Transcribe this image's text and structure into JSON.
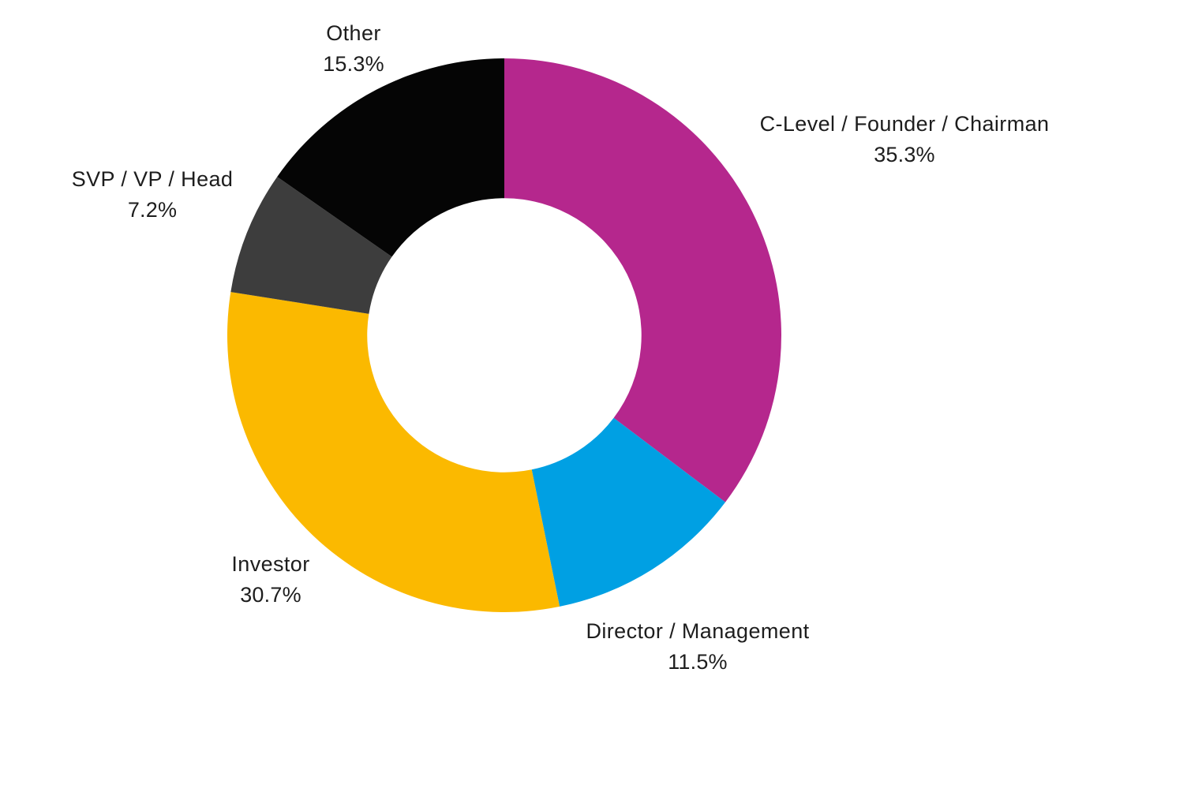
{
  "chart_data": {
    "type": "pie",
    "subtype": "donut",
    "title": "",
    "legend_position": "none",
    "labels_outside": true,
    "inner_radius_ratio": 0.495,
    "start_angle_deg": 0,
    "direction": "clockwise",
    "background_color": "#ffffff",
    "label_color": "#1d1d1d",
    "slices": [
      {
        "label": "C-Level / Founder / Chairman",
        "value": 35.3,
        "pct_label": "35.3%",
        "color": "#b5278d"
      },
      {
        "label": "Director / Management",
        "value": 11.5,
        "pct_label": "11.5%",
        "color": "#00a0e3"
      },
      {
        "label": "Investor",
        "value": 30.7,
        "pct_label": "30.7%",
        "color": "#fbb900"
      },
      {
        "label": "SVP / VP / Head",
        "value": 7.2,
        "pct_label": "7.2%",
        "color": "#3d3d3d"
      },
      {
        "label": "Other",
        "value": 15.3,
        "pct_label": "15.3%",
        "color": "#050505"
      }
    ]
  }
}
